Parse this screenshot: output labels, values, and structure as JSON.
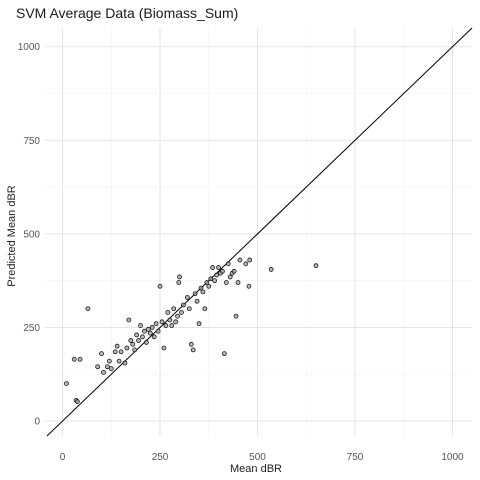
{
  "chart_data": {
    "type": "scatter",
    "title": "SVM Average Data (Biomass_Sum)",
    "xlabel": "Mean dBR",
    "ylabel": "Predicted Mean dBR",
    "xlim": [
      -45,
      1050
    ],
    "ylim": [
      -40,
      1050
    ],
    "x_ticks": [
      0,
      250,
      500,
      750,
      1000
    ],
    "y_ticks": [
      0,
      250,
      500,
      750,
      1000
    ],
    "grid": true,
    "reference_line": "y = x",
    "points": [
      {
        "x": 10,
        "y": 100
      },
      {
        "x": 30,
        "y": 165
      },
      {
        "x": 35,
        "y": 55
      },
      {
        "x": 38,
        "y": 52
      },
      {
        "x": 45,
        "y": 165
      },
      {
        "x": 65,
        "y": 300
      },
      {
        "x": 90,
        "y": 145
      },
      {
        "x": 100,
        "y": 180
      },
      {
        "x": 105,
        "y": 130
      },
      {
        "x": 115,
        "y": 145
      },
      {
        "x": 120,
        "y": 160
      },
      {
        "x": 125,
        "y": 140
      },
      {
        "x": 135,
        "y": 185
      },
      {
        "x": 140,
        "y": 200
      },
      {
        "x": 145,
        "y": 160
      },
      {
        "x": 150,
        "y": 185
      },
      {
        "x": 160,
        "y": 155
      },
      {
        "x": 165,
        "y": 195
      },
      {
        "x": 170,
        "y": 270
      },
      {
        "x": 175,
        "y": 215
      },
      {
        "x": 180,
        "y": 205
      },
      {
        "x": 185,
        "y": 190
      },
      {
        "x": 190,
        "y": 230
      },
      {
        "x": 195,
        "y": 215
      },
      {
        "x": 200,
        "y": 255
      },
      {
        "x": 205,
        "y": 225
      },
      {
        "x": 210,
        "y": 240
      },
      {
        "x": 215,
        "y": 210
      },
      {
        "x": 220,
        "y": 245
      },
      {
        "x": 225,
        "y": 235
      },
      {
        "x": 230,
        "y": 250
      },
      {
        "x": 235,
        "y": 225
      },
      {
        "x": 240,
        "y": 260
      },
      {
        "x": 245,
        "y": 240
      },
      {
        "x": 250,
        "y": 360
      },
      {
        "x": 255,
        "y": 265
      },
      {
        "x": 260,
        "y": 195
      },
      {
        "x": 265,
        "y": 255
      },
      {
        "x": 270,
        "y": 290
      },
      {
        "x": 275,
        "y": 270
      },
      {
        "x": 280,
        "y": 255
      },
      {
        "x": 285,
        "y": 300
      },
      {
        "x": 290,
        "y": 265
      },
      {
        "x": 295,
        "y": 280
      },
      {
        "x": 298,
        "y": 370
      },
      {
        "x": 300,
        "y": 385
      },
      {
        "x": 305,
        "y": 290
      },
      {
        "x": 310,
        "y": 310
      },
      {
        "x": 320,
        "y": 330
      },
      {
        "x": 325,
        "y": 300
      },
      {
        "x": 330,
        "y": 205
      },
      {
        "x": 335,
        "y": 190
      },
      {
        "x": 340,
        "y": 340
      },
      {
        "x": 345,
        "y": 320
      },
      {
        "x": 350,
        "y": 260
      },
      {
        "x": 355,
        "y": 355
      },
      {
        "x": 360,
        "y": 345
      },
      {
        "x": 365,
        "y": 300
      },
      {
        "x": 370,
        "y": 370
      },
      {
        "x": 375,
        "y": 360
      },
      {
        "x": 380,
        "y": 380
      },
      {
        "x": 385,
        "y": 410
      },
      {
        "x": 390,
        "y": 375
      },
      {
        "x": 395,
        "y": 390
      },
      {
        "x": 400,
        "y": 410
      },
      {
        "x": 405,
        "y": 395
      },
      {
        "x": 410,
        "y": 400
      },
      {
        "x": 415,
        "y": 180
      },
      {
        "x": 420,
        "y": 370
      },
      {
        "x": 425,
        "y": 420
      },
      {
        "x": 430,
        "y": 385
      },
      {
        "x": 435,
        "y": 395
      },
      {
        "x": 440,
        "y": 400
      },
      {
        "x": 445,
        "y": 280
      },
      {
        "x": 450,
        "y": 370
      },
      {
        "x": 455,
        "y": 430
      },
      {
        "x": 470,
        "y": 420
      },
      {
        "x": 478,
        "y": 360
      },
      {
        "x": 480,
        "y": 430
      },
      {
        "x": 535,
        "y": 405
      },
      {
        "x": 650,
        "y": 415
      }
    ]
  }
}
